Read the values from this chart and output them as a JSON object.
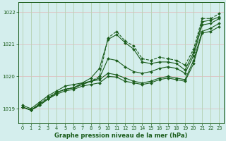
{
  "title": "Graphe pression niveau de la mer (hPa)",
  "bg_color": "#d4eeed",
  "grid_color_h": "#ddc8c8",
  "grid_color_v": "#b8d4b8",
  "line_color": "#1a5c1a",
  "xlim": [
    -0.5,
    23.5
  ],
  "ylim": [
    1018.55,
    1022.3
  ],
  "yticks": [
    1019,
    1020,
    1021,
    1022
  ],
  "xticks": [
    0,
    1,
    2,
    3,
    4,
    5,
    6,
    7,
    8,
    9,
    10,
    11,
    12,
    13,
    14,
    15,
    16,
    17,
    18,
    19,
    20,
    21,
    22,
    23
  ],
  "series": [
    {
      "x": [
        0,
        1,
        2,
        3,
        4,
        5,
        6,
        7,
        8,
        9,
        10,
        11,
        12,
        13,
        14,
        15,
        16,
        17,
        18,
        19,
        20,
        21,
        22,
        23
      ],
      "y": [
        1019.05,
        1018.95,
        1019.15,
        1019.3,
        1019.5,
        1019.6,
        1019.65,
        1019.8,
        1019.85,
        1019.9,
        1020.1,
        1020.05,
        1019.95,
        1019.85,
        1019.8,
        1019.85,
        1019.95,
        1020.0,
        1019.95,
        1019.9,
        1020.5,
        1021.4,
        1021.5,
        1021.65
      ],
      "ls": "-"
    },
    {
      "x": [
        0,
        1,
        2,
        3,
        4,
        5,
        6,
        7,
        8,
        9,
        10,
        11,
        12,
        13,
        14,
        15,
        16,
        17,
        18,
        19,
        20,
        21,
        22,
        23
      ],
      "y": [
        1019.05,
        1018.95,
        1019.1,
        1019.3,
        1019.45,
        1019.55,
        1019.6,
        1019.7,
        1019.75,
        1019.8,
        1020.0,
        1019.98,
        1019.85,
        1019.8,
        1019.75,
        1019.8,
        1019.9,
        1019.95,
        1019.9,
        1019.85,
        1020.4,
        1021.35,
        1021.4,
        1021.55
      ],
      "ls": "-"
    },
    {
      "x": [
        0,
        1,
        2,
        3,
        4,
        5,
        6,
        7,
        8,
        9,
        10,
        11,
        12,
        13,
        14,
        15,
        16,
        17,
        18,
        19,
        20,
        21,
        22,
        23
      ],
      "y": [
        1019.05,
        1018.95,
        1019.1,
        1019.3,
        1019.5,
        1019.6,
        1019.65,
        1019.75,
        1019.85,
        1019.95,
        1020.55,
        1020.5,
        1020.3,
        1020.15,
        1020.1,
        1020.15,
        1020.25,
        1020.3,
        1020.25,
        1020.1,
        1020.65,
        1021.6,
        1021.65,
        1021.8
      ],
      "ls": "-"
    },
    {
      "x": [
        0,
        1,
        2,
        3,
        4,
        5,
        6,
        7,
        8,
        9,
        10,
        11,
        12,
        13,
        14,
        15,
        16,
        17,
        18,
        19,
        20,
        21,
        22,
        23
      ],
      "y": [
        1019.1,
        1019.0,
        1019.2,
        1019.4,
        1019.55,
        1019.7,
        1019.75,
        1019.8,
        1019.95,
        1020.25,
        1021.15,
        1021.3,
        1021.05,
        1020.85,
        1020.45,
        1020.4,
        1020.45,
        1020.45,
        1020.4,
        1020.2,
        1020.75,
        1021.7,
        1021.75,
        1021.85
      ],
      "ls": "-"
    },
    {
      "x": [
        0,
        1,
        2,
        3,
        4,
        5,
        6,
        7,
        8,
        9,
        10,
        11,
        12,
        13,
        14,
        15,
        16,
        17,
        18,
        19,
        20,
        21,
        22,
        23
      ],
      "y": [
        1019.05,
        1018.95,
        1019.15,
        1019.35,
        1019.5,
        1019.6,
        1019.65,
        1019.75,
        1019.85,
        1020.0,
        1021.2,
        1021.4,
        1021.1,
        1020.95,
        1020.55,
        1020.5,
        1020.6,
        1020.55,
        1020.5,
        1020.35,
        1020.85,
        1021.8,
        1021.8,
        1021.95
      ],
      "ls": "--"
    }
  ]
}
